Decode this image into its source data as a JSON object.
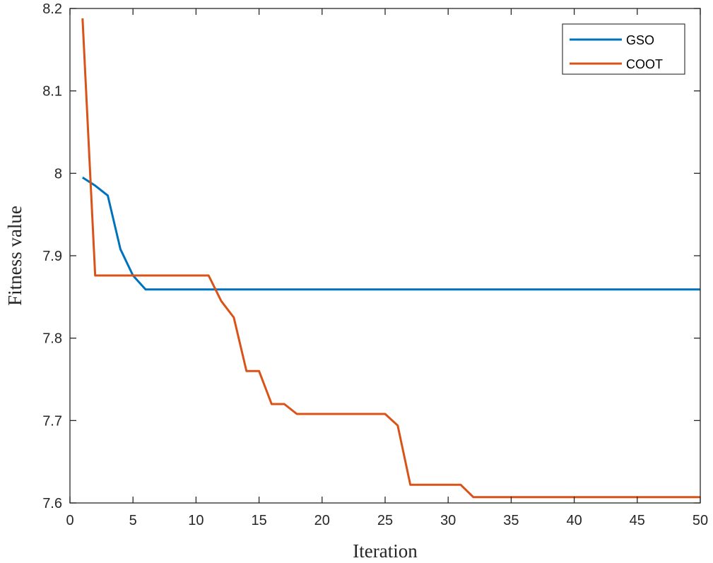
{
  "chart_data": {
    "type": "line",
    "xlabel": "Iteration",
    "ylabel": "Fitness value",
    "xlim": [
      0,
      50
    ],
    "ylim": [
      7.6,
      8.2
    ],
    "xticks": [
      0,
      5,
      10,
      15,
      20,
      25,
      30,
      35,
      40,
      45,
      50
    ],
    "yticks": [
      7.6,
      7.7,
      7.8,
      7.9,
      8,
      8.1,
      8.2
    ],
    "xtick_labels": [
      "0",
      "5",
      "10",
      "15",
      "20",
      "25",
      "30",
      "35",
      "40",
      "45",
      "50"
    ],
    "ytick_labels": [
      "7.6",
      "7.7",
      "7.8",
      "7.9",
      "8",
      "8.1",
      "8.2"
    ],
    "grid": false,
    "legend_position": "top-right",
    "series": [
      {
        "name": "GSO",
        "color": "#0072BD",
        "x": [
          1,
          2,
          3,
          4,
          5,
          6,
          50
        ],
        "y": [
          7.995,
          7.985,
          7.973,
          7.908,
          7.876,
          7.859,
          7.859
        ]
      },
      {
        "name": "COOT",
        "color": "#D95319",
        "x": [
          1,
          2,
          11,
          12,
          13,
          14,
          15,
          16,
          17,
          18,
          25,
          26,
          27,
          31,
          32,
          50
        ],
        "y": [
          8.188,
          7.876,
          7.876,
          7.845,
          7.825,
          7.76,
          7.76,
          7.72,
          7.72,
          7.708,
          7.708,
          7.694,
          7.622,
          7.622,
          7.607,
          7.607
        ]
      }
    ]
  }
}
